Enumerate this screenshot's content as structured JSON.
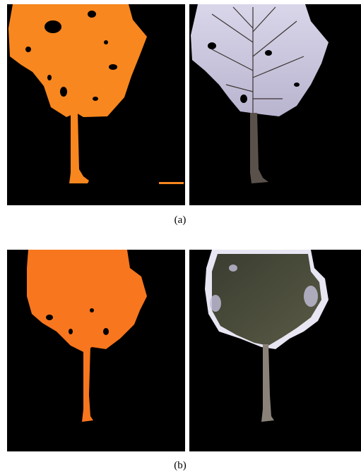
{
  "captions": [
    "(a)",
    "(b)"
  ]
}
